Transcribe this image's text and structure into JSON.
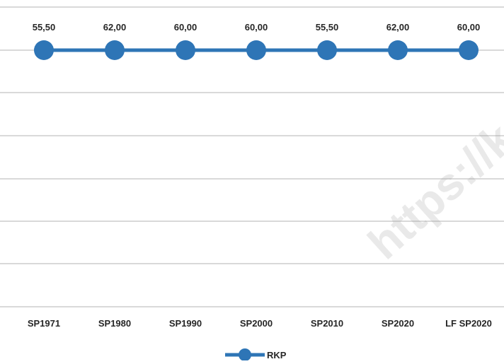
{
  "watermark": "https://k",
  "colors": {
    "series": "#2E75B6",
    "grid": "#D9D9D9",
    "text": "#262626"
  },
  "chart_data": {
    "type": "line",
    "categories": [
      "SP1971",
      "SP1980",
      "SP1990",
      "SP2000",
      "SP2010",
      "SP2020",
      "LF SP2020"
    ],
    "series": [
      {
        "name": "RKP",
        "values": [
          55.5,
          62.0,
          60.0,
          60.0,
          55.5,
          62.0,
          60.0
        ],
        "labels": [
          "55,50",
          "62,00",
          "60,00",
          "60,00",
          "55,50",
          "62,00",
          "60,00"
        ]
      }
    ],
    "grid": true,
    "markers": "circle",
    "data_labels": "above",
    "legend": "bottom"
  }
}
